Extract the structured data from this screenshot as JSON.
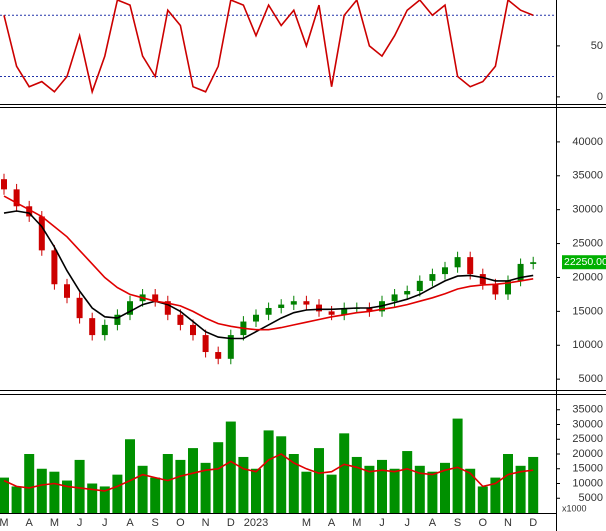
{
  "chart_data": [
    {
      "type": "line",
      "ylim": [
        -7,
        95
      ],
      "yticks": [
        0,
        50
      ],
      "reference_lines": [
        80,
        20
      ],
      "series": [
        {
          "color": "#cc0000",
          "values": [
            80,
            30,
            10,
            15,
            5,
            20,
            60,
            5,
            40,
            95,
            90,
            40,
            20,
            85,
            70,
            10,
            5,
            30,
            95,
            90,
            60,
            90,
            70,
            85,
            50,
            90,
            10,
            80,
            95,
            50,
            40,
            60,
            85,
            95,
            80,
            90,
            20,
            10,
            15,
            30,
            95,
            85,
            80
          ]
        }
      ]
    },
    {
      "type": "candlestick",
      "ylim": [
        3400,
        45000
      ],
      "yticks": [
        5000,
        10000,
        15000,
        20000,
        25000,
        30000,
        35000,
        40000
      ],
      "up_color": "#008000",
      "down_color": "#cc0000",
      "last_label": "22250.00",
      "open": [
        34500,
        33000,
        30500,
        29000,
        24000,
        19000,
        17000,
        14000,
        11500,
        13000,
        14500,
        16500,
        17500,
        16500,
        14500,
        13000,
        11500,
        9000,
        8000,
        11500,
        13500,
        14500,
        15500,
        16000,
        16500,
        16000,
        15000,
        14500,
        15500,
        15500,
        15000,
        16500,
        17500,
        18000,
        19500,
        20500,
        21500,
        23000,
        20500,
        19000,
        17500,
        19500,
        22000
      ],
      "high": [
        35300,
        33800,
        31300,
        29800,
        24800,
        19800,
        17800,
        14800,
        13800,
        15300,
        17300,
        18300,
        18300,
        17300,
        15300,
        13800,
        12300,
        9800,
        12300,
        14300,
        15300,
        16300,
        16800,
        17300,
        17300,
        16800,
        15800,
        16300,
        16300,
        16300,
        17300,
        18300,
        18800,
        20300,
        21300,
        22300,
        23800,
        23800,
        21300,
        19800,
        20300,
        22800,
        23050
      ],
      "low": [
        32200,
        29700,
        28200,
        23200,
        18200,
        16200,
        13200,
        10700,
        10700,
        12200,
        13700,
        15700,
        15700,
        13700,
        12200,
        10700,
        8200,
        7200,
        7200,
        10700,
        12700,
        13700,
        14700,
        15200,
        15200,
        14200,
        13700,
        13700,
        14700,
        14200,
        14200,
        15700,
        16700,
        17200,
        18700,
        19700,
        20700,
        19700,
        18200,
        16700,
        16700,
        18700,
        21200
      ],
      "close": [
        33000,
        30500,
        29000,
        24000,
        19000,
        17000,
        14000,
        11500,
        13000,
        14500,
        16500,
        17500,
        16500,
        14500,
        13000,
        11500,
        9000,
        8000,
        11500,
        13500,
        14500,
        15500,
        16000,
        16500,
        16000,
        15000,
        14500,
        15500,
        15500,
        15000,
        16500,
        17500,
        18000,
        19500,
        20500,
        21500,
        23000,
        20500,
        19000,
        17500,
        19500,
        22000,
        22250
      ],
      "series": [
        {
          "color": "#000000",
          "values": [
            29500,
            29800,
            29500,
            27500,
            24500,
            21000,
            18000,
            15500,
            14200,
            14000,
            15000,
            16000,
            16500,
            16000,
            15000,
            13500,
            12000,
            11200,
            11000,
            11000,
            12000,
            13000,
            14000,
            14800,
            15200,
            15300,
            15300,
            15400,
            15500,
            15500,
            15800,
            16300,
            16800,
            17500,
            18500,
            19500,
            20200,
            20300,
            20000,
            19500,
            19500,
            20000,
            20300
          ]
        },
        {
          "color": "#e00000",
          "values": [
            32000,
            31000,
            30000,
            29000,
            27500,
            26000,
            24000,
            22000,
            20000,
            18500,
            17500,
            17000,
            16500,
            16200,
            15800,
            15000,
            14000,
            13200,
            12800,
            12500,
            12300,
            12300,
            12600,
            13000,
            13400,
            13800,
            14200,
            14500,
            14800,
            15000,
            15300,
            15600,
            16000,
            16500,
            17000,
            17600,
            18300,
            18700,
            18900,
            19000,
            19200,
            19500,
            19800
          ]
        }
      ]
    },
    {
      "type": "bar",
      "ylim": [
        0,
        40000
      ],
      "yticks": [
        5000,
        10000,
        15000,
        20000,
        25000,
        30000,
        35000
      ],
      "color": "#009000",
      "unit_label": "x1000",
      "categories": [
        "M",
        null,
        "A",
        null,
        "M",
        null,
        "J",
        null,
        "J",
        null,
        "A",
        null,
        "S",
        null,
        "O",
        null,
        "N",
        null,
        "D",
        null,
        "2023",
        null,
        null,
        null,
        "M",
        null,
        "A",
        null,
        "M",
        null,
        "J",
        null,
        "J",
        null,
        "A",
        null,
        "S",
        null,
        "O",
        null,
        "N",
        null,
        "D"
      ],
      "values": [
        12000,
        9000,
        20000,
        15000,
        14000,
        11000,
        18000,
        10000,
        9000,
        13000,
        25000,
        16000,
        12000,
        20000,
        18000,
        22000,
        17000,
        24000,
        31000,
        19000,
        15000,
        28000,
        26000,
        20000,
        14000,
        22000,
        13000,
        27000,
        19000,
        16000,
        18000,
        15000,
        21000,
        16000,
        14000,
        17000,
        32000,
        15000,
        9000,
        12000,
        20000,
        16000,
        19000
      ],
      "series": [
        {
          "color": "#e00000",
          "values": [
            11000,
            9000,
            8500,
            9500,
            10000,
            9000,
            8500,
            8000,
            7500,
            9000,
            11000,
            13000,
            12000,
            11000,
            12500,
            13500,
            14500,
            15000,
            17500,
            15000,
            14000,
            18000,
            20000,
            17000,
            15000,
            13500,
            14000,
            16500,
            15500,
            14000,
            14500,
            14000,
            15000,
            13500,
            13000,
            14500,
            15500,
            13500,
            9000,
            10000,
            13000,
            14000,
            14500
          ]
        }
      ]
    }
  ]
}
